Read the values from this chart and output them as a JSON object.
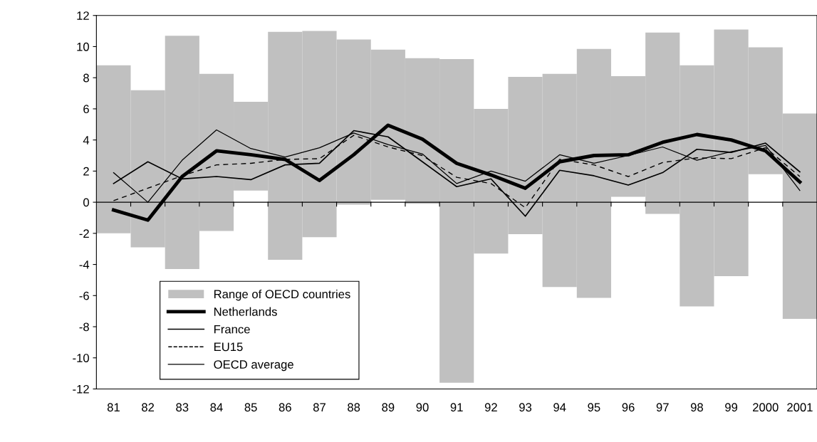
{
  "chart_data": {
    "type": "bar",
    "categories": [
      "81",
      "82",
      "83",
      "84",
      "85",
      "86",
      "87",
      "88",
      "89",
      "90",
      "91",
      "92",
      "93",
      "94",
      "95",
      "96",
      "97",
      "98",
      "99",
      "2000",
      "2001"
    ],
    "ylim": [
      -12,
      12
    ],
    "yticks": [
      -12,
      -10,
      -8,
      -6,
      -4,
      -2,
      0,
      2,
      4,
      6,
      8,
      10,
      12
    ],
    "grid": false,
    "legend": "bottom left",
    "ref_lines": [
      {
        "axis": "y",
        "value": 0,
        "color": "#000000",
        "line_style": "solid"
      }
    ],
    "series": [
      {
        "name": "Range of OECD countries",
        "color": "#c0c0c0",
        "base": [
          -2.0,
          -2.9,
          -4.3,
          -1.85,
          0.75,
          -3.7,
          -2.25,
          -0.15,
          0.15,
          -0.1,
          -11.6,
          -3.3,
          -2.05,
          -5.45,
          -6.15,
          0.35,
          -0.75,
          -6.7,
          -4.75,
          1.8,
          -7.5
        ],
        "values": [
          10.8,
          10.1,
          15.0,
          10.1,
          5.7,
          14.65,
          13.25,
          10.6,
          9.65,
          9.35,
          20.8,
          9.3,
          10.1,
          13.7,
          16.0,
          7.75,
          11.65,
          15.5,
          15.85,
          8.15,
          13.2
        ]
      },
      {
        "name": "Netherlands",
        "type": "line",
        "color": "#000000",
        "line_style": "solid",
        "values": [
          -0.5,
          -1.15,
          1.65,
          3.3,
          3.05,
          2.75,
          1.4,
          3.05,
          4.95,
          4.05,
          2.5,
          1.75,
          0.9,
          2.6,
          3.0,
          3.05,
          3.85,
          4.35,
          4.0,
          3.3,
          1.3
        ]
      },
      {
        "name": "France",
        "type": "line",
        "color": "#000000",
        "line_style": "solid",
        "values": [
          1.2,
          2.6,
          1.5,
          1.65,
          1.45,
          2.4,
          2.5,
          4.6,
          4.2,
          2.6,
          1.0,
          1.5,
          -0.9,
          2.05,
          1.7,
          1.1,
          1.9,
          3.4,
          3.2,
          3.8,
          1.95
        ]
      },
      {
        "name": "EU15",
        "type": "line",
        "color": "#000000",
        "line_style": "dashed",
        "values": [
          0.1,
          0.9,
          1.7,
          2.4,
          2.5,
          2.75,
          2.8,
          4.3,
          3.55,
          3.0,
          1.6,
          1.2,
          -0.35,
          2.75,
          2.4,
          1.65,
          2.55,
          2.85,
          2.8,
          3.5,
          1.65
        ]
      },
      {
        "name": "OECD average",
        "type": "line",
        "color": "#000000",
        "line_style": "solid",
        "values": [
          1.9,
          0.0,
          2.7,
          4.65,
          3.45,
          2.9,
          3.5,
          4.45,
          3.7,
          3.1,
          1.2,
          2.0,
          1.35,
          3.05,
          2.5,
          3.0,
          3.55,
          2.7,
          3.25,
          3.65,
          0.75
        ]
      }
    ]
  }
}
